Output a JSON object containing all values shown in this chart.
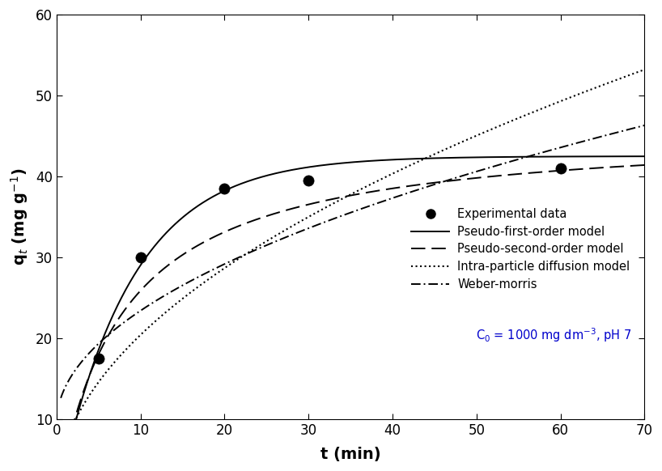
{
  "exp_t": [
    5,
    10,
    20,
    30,
    60
  ],
  "exp_q": [
    17.5,
    30.0,
    38.5,
    39.5,
    41.0
  ],
  "xlabel": "t (min)",
  "ylabel": "q$_t$ (mg g$^{-1}$)",
  "xlim": [
    0,
    70
  ],
  "ylim": [
    10,
    60
  ],
  "xticks": [
    0,
    10,
    20,
    30,
    40,
    50,
    60,
    70
  ],
  "yticks": [
    10,
    20,
    30,
    40,
    50,
    60
  ],
  "pfo_qe": 42.5,
  "pfo_k1": 0.115,
  "pso_qe": 46.0,
  "pso_k2": 0.0028,
  "ipd_ki": 6.3,
  "ipd_c": 0.5,
  "wm_ki": 4.4,
  "wm_c": 9.5,
  "legend_labels": [
    "Experimental data",
    "Pseudo-first-order model",
    "Pseudo-second-order model",
    "Intra-particle diffusion model",
    "Weber-morris"
  ],
  "legend_note": "C$_0$ = 1000 mg dm$^{-3}$, pH 7",
  "line_color": "#000000",
  "marker_color": "#000000",
  "font_size": 12,
  "axis_font_size": 14,
  "legend_font_size": 10.5
}
